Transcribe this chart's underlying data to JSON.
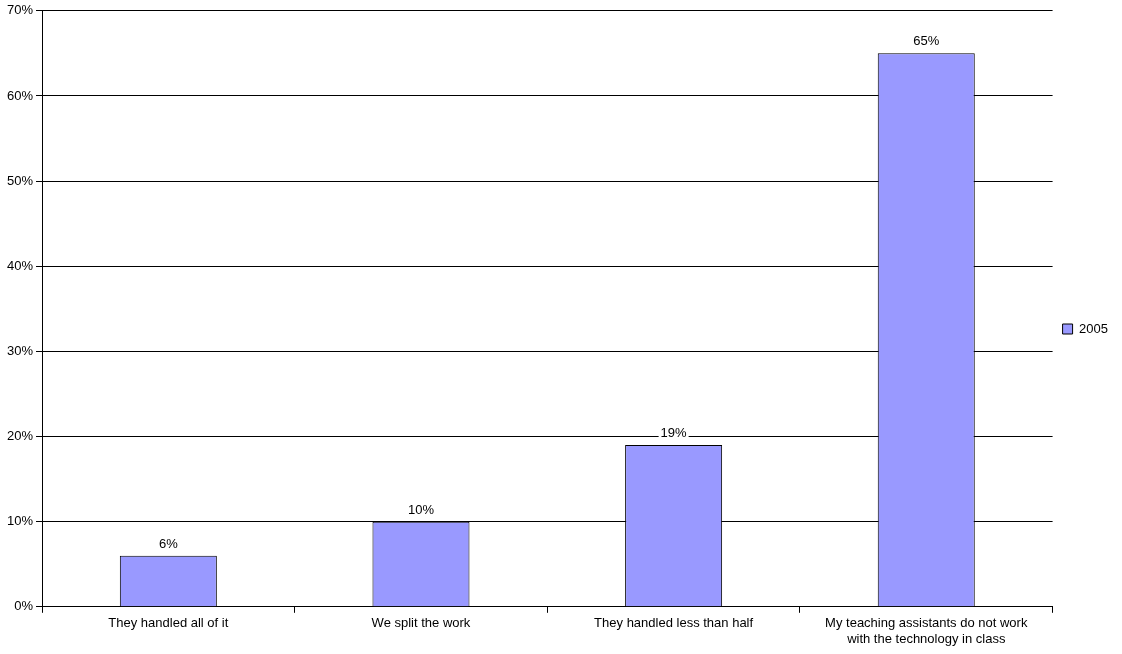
{
  "chart_data": {
    "type": "bar",
    "categories": [
      "They handled all of it",
      "We split the work",
      "They handled less than half",
      "My teaching assistants do not work with the technology in class"
    ],
    "series": [
      {
        "name": "2005",
        "color": "#9999ff",
        "values": [
          6,
          10,
          19,
          65
        ],
        "value_labels": [
          "6%",
          "10%",
          "19%",
          "65%"
        ]
      }
    ],
    "ylim": [
      0,
      70
    ],
    "yticks": [
      {
        "value": 0,
        "label": "0%"
      },
      {
        "value": 10,
        "label": "10%"
      },
      {
        "value": 20,
        "label": "20%"
      },
      {
        "value": 30,
        "label": "30%"
      },
      {
        "value": 40,
        "label": "40%"
      },
      {
        "value": 50,
        "label": "50%"
      },
      {
        "value": 60,
        "label": "60%"
      },
      {
        "value": 70,
        "label": "70%"
      }
    ],
    "grid": "y",
    "legend": "right"
  }
}
